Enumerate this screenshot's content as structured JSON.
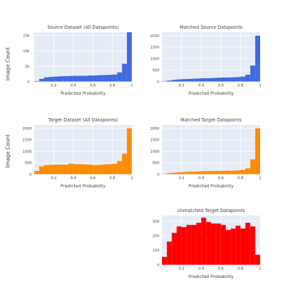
{
  "figure": {
    "row_y_labels": [
      "Image Count",
      "Image Count"
    ]
  },
  "chart_data": [
    {
      "type": "bar",
      "title": "Source Dataset (All Datapoints)",
      "xlabel": "Predicted Probability",
      "ylabel": "Image Count",
      "color": "#4169e1",
      "xlim": [
        0,
        1
      ],
      "ylim": [
        0,
        16000
      ],
      "xticks": [
        "0.2",
        "0.4",
        "0.6",
        "0.8",
        "1"
      ],
      "yticks": [
        0,
        5000,
        10000,
        15000
      ],
      "ytick_labels": [
        "0",
        "5k",
        "10k",
        "15k"
      ],
      "bin_start": 0.025,
      "bin_width": 0.05,
      "values": [
        200,
        900,
        1400,
        1550,
        1650,
        1750,
        1800,
        1850,
        1900,
        1900,
        1900,
        2000,
        2000,
        2100,
        2150,
        2200,
        2300,
        3000,
        5800,
        16000
      ]
    },
    {
      "type": "bar",
      "title": "Matched Source Datapoints",
      "xlabel": "Predicted Probability",
      "ylabel": "",
      "color": "#4169e1",
      "xlim": [
        0,
        1
      ],
      "ylim": [
        0,
        2150
      ],
      "xticks": [
        "0.2",
        "0.4",
        "0.6",
        "0.8",
        "1"
      ],
      "yticks": [
        0,
        500,
        1000,
        1500,
        2000
      ],
      "ytick_labels": [
        "0",
        "500",
        "1000",
        "1500",
        "2000"
      ],
      "bin_start": 0.025,
      "bin_width": 0.05,
      "values": [
        20,
        50,
        80,
        100,
        110,
        120,
        130,
        140,
        150,
        150,
        160,
        170,
        180,
        180,
        190,
        200,
        220,
        300,
        700,
        2000
      ]
    },
    {
      "type": "bar",
      "title": "Target Dataset (All Datapoints)",
      "xlabel": "Predicted Probability",
      "ylabel": "Image Count",
      "color": "#ff8c00",
      "xlim": [
        0,
        1
      ],
      "ylim": [
        0,
        2150
      ],
      "xticks": [
        "0.2",
        "0.4",
        "0.6",
        "0.8",
        "1"
      ],
      "yticks": [
        0,
        500,
        1000,
        1500,
        2000
      ],
      "ytick_labels": [
        "0",
        "500",
        "1000",
        "1500",
        "2000"
      ],
      "bin_start": 0.025,
      "bin_width": 0.05,
      "values": [
        150,
        350,
        400,
        410,
        420,
        420,
        420,
        470,
        440,
        440,
        430,
        420,
        400,
        410,
        430,
        440,
        460,
        580,
        900,
        2000
      ]
    },
    {
      "type": "bar",
      "title": "Matched Target Datapoints",
      "xlabel": "Predicted Probability",
      "ylabel": "",
      "color": "#ff8c00",
      "xlim": [
        0,
        1
      ],
      "ylim": [
        0,
        2150
      ],
      "xticks": [
        "0.2",
        "0.4",
        "0.6",
        "0.8",
        "1"
      ],
      "yticks": [
        0,
        500,
        1000,
        1500,
        2000
      ],
      "ytick_labels": [
        "0",
        "500",
        "1000",
        "1500",
        "2000"
      ],
      "bin_start": 0.025,
      "bin_width": 0.05,
      "values": [
        20,
        50,
        70,
        90,
        100,
        110,
        120,
        130,
        140,
        140,
        150,
        150,
        150,
        160,
        160,
        170,
        190,
        260,
        650,
        2000
      ]
    },
    {
      "type": "bar",
      "title": "Unmatched Target Datapoints",
      "xlabel": "Predicted Probability",
      "ylabel": "",
      "color": "#ff0000",
      "xlim": [
        0,
        1
      ],
      "ylim": [
        0,
        340
      ],
      "xticks": [
        "0.2",
        "0.4",
        "0.6",
        "0.8",
        "1"
      ],
      "yticks": [
        0,
        100,
        200,
        300
      ],
      "ytick_labels": [
        "0",
        "100",
        "200",
        "300"
      ],
      "bin_start": 0.025,
      "bin_width": 0.05,
      "values": [
        55,
        160,
        220,
        265,
        260,
        275,
        275,
        290,
        325,
        295,
        285,
        285,
        275,
        240,
        250,
        270,
        250,
        290,
        265,
        70
      ]
    }
  ]
}
